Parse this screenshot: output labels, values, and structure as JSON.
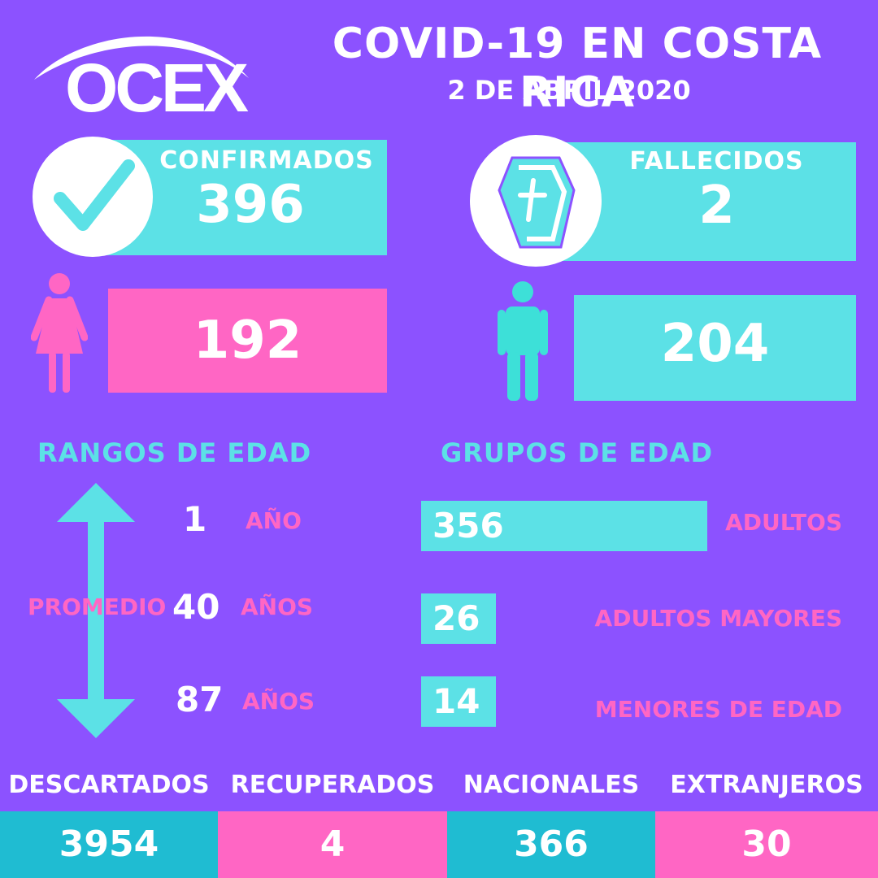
{
  "header": {
    "logo_text": "OCEX",
    "title": "COVID-19 EN COSTA RICA",
    "date": "2 DE ABRIL 2020"
  },
  "confirmados": {
    "label": "CONFIRMADOS",
    "value": "396",
    "icon": "check-icon"
  },
  "fallecidos": {
    "label": "FALLECIDOS",
    "value": "2",
    "icon": "coffin-icon"
  },
  "mujeres": {
    "value": "192",
    "icon": "woman-icon"
  },
  "hombres": {
    "value": "204",
    "icon": "man-icon"
  },
  "rangos": {
    "title": "RANGOS DE EDAD",
    "min": {
      "value": "1",
      "unit": "AÑO"
    },
    "promedio_label": "PROMEDIO",
    "avg": {
      "value": "40",
      "unit": "AÑOS"
    },
    "max": {
      "value": "87",
      "unit": "AÑOS"
    }
  },
  "grupos": {
    "title": "GRUPOS DE EDAD",
    "items": [
      {
        "value": 356,
        "label": "ADULTOS"
      },
      {
        "value": 26,
        "label": "ADULTOS MAYORES"
      },
      {
        "value": 14,
        "label": "MENORES DE EDAD"
      }
    ]
  },
  "bottom": [
    {
      "label": "DESCARTADOS",
      "value": "3954"
    },
    {
      "label": "RECUPERADOS",
      "value": "4"
    },
    {
      "label": "NACIONALES",
      "value": "366"
    },
    {
      "label": "EXTRANJEROS",
      "value": "30"
    }
  ],
  "colors": {
    "background": "#8c52ff",
    "cyan": "#5ce1e6",
    "pink": "#ff66c4",
    "teal": "#1fbcd2"
  }
}
